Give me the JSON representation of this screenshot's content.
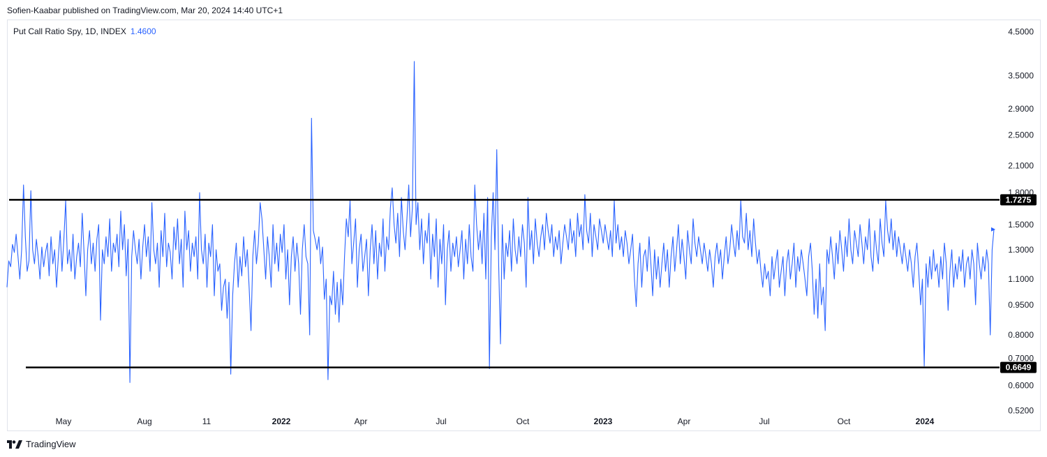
{
  "header": {
    "published": "Sofien-Kaabar published on TradingView.com, Mar 20, 2024 14:40 UTC+1"
  },
  "legend": {
    "name": "Put Call Ratio Spy, 1D, INDEX",
    "value": "1.4600"
  },
  "footer": {
    "brand": "TradingView"
  },
  "colors": {
    "series": "#2962ff",
    "hline": "#000000",
    "text": "#131722",
    "border": "#e0e3eb"
  },
  "chart_data": {
    "type": "line",
    "title": "Put Call Ratio Spy, 1D, INDEX",
    "scale": "log",
    "ylim": [
      0.5,
      4.6
    ],
    "y_ticks": [
      "4.5000",
      "3.5000",
      "2.9000",
      "2.5000",
      "2.1000",
      "1.8000",
      "1.5000",
      "1.3000",
      "1.1000",
      "0.9500",
      "0.8000",
      "0.7000",
      "0.6000",
      "0.5200"
    ],
    "x_ticks": [
      {
        "label": "May",
        "bold": false
      },
      {
        "label": "Aug",
        "bold": false
      },
      {
        "label": "11",
        "bold": false
      },
      {
        "label": "2022",
        "bold": true
      },
      {
        "label": "Apr",
        "bold": false
      },
      {
        "label": "Jul",
        "bold": false
      },
      {
        "label": "Oct",
        "bold": false
      },
      {
        "label": "2023",
        "bold": true
      },
      {
        "label": "Apr",
        "bold": false
      },
      {
        "label": "Jul",
        "bold": false
      },
      {
        "label": "Oct",
        "bold": false
      },
      {
        "label": "2024",
        "bold": true
      }
    ],
    "x_range": [
      "2021-03",
      "2024-03-20"
    ],
    "hlines": [
      {
        "value": 1.7275,
        "label": "1.7275"
      },
      {
        "value": 0.6649,
        "label": "0.6649"
      }
    ],
    "last_value": 1.46,
    "series": [
      {
        "values": [
          1.05,
          1.22,
          1.18,
          1.34,
          1.28,
          1.42,
          1.25,
          1.1,
          1.3,
          1.88,
          1.4,
          1.15,
          1.22,
          1.82,
          1.3,
          1.2,
          1.38,
          1.25,
          1.1,
          1.32,
          1.18,
          1.28,
          1.35,
          1.12,
          1.4,
          1.2,
          1.3,
          1.05,
          1.25,
          1.45,
          1.15,
          1.38,
          1.72,
          1.2,
          1.3,
          1.15,
          1.42,
          1.1,
          1.25,
          1.35,
          1.18,
          1.6,
          1.28,
          1.0,
          1.3,
          1.45,
          1.2,
          1.35,
          1.15,
          1.38,
          1.5,
          0.87,
          1.3,
          1.2,
          1.4,
          1.25,
          1.55,
          1.15,
          1.35,
          1.28,
          1.42,
          1.18,
          1.62,
          1.3,
          1.5,
          1.12,
          1.38,
          0.61,
          1.25,
          1.45,
          1.3,
          1.2,
          1.38,
          1.1,
          1.32,
          1.5,
          1.25,
          1.4,
          1.15,
          1.7,
          1.3,
          1.2,
          1.35,
          1.05,
          1.45,
          1.25,
          1.6,
          1.18,
          1.35,
          1.28,
          1.1,
          1.48,
          1.3,
          1.55,
          1.2,
          1.38,
          1.05,
          1.62,
          1.3,
          1.45,
          1.15,
          1.35,
          1.25,
          1.4,
          1.1,
          1.8,
          1.3,
          1.2,
          1.42,
          1.05,
          1.35,
          1.25,
          1.5,
          1.0,
          1.3,
          1.15,
          1.2,
          0.92,
          1.05,
          1.1,
          0.88,
          1.08,
          0.64,
          1.0,
          1.2,
          1.35,
          1.05,
          1.25,
          1.12,
          1.4,
          1.18,
          1.3,
          1.05,
          0.82,
          1.25,
          1.45,
          1.2,
          1.35,
          1.7,
          1.55,
          1.3,
          1.1,
          1.4,
          1.25,
          1.05,
          1.5,
          1.2,
          1.35,
          1.15,
          1.42,
          1.28,
          1.5,
          1.1,
          1.3,
          0.95,
          1.25,
          1.4,
          1.15,
          1.35,
          1.2,
          0.9,
          1.3,
          1.5,
          1.25,
          1.2,
          0.8,
          2.75,
          1.45,
          1.38,
          1.3,
          1.4,
          1.2,
          1.32,
          0.98,
          1.1,
          0.62,
          1.0,
          0.95,
          1.15,
          0.9,
          1.08,
          0.86,
          1.1,
          0.95,
          1.25,
          1.55,
          1.4,
          1.72,
          1.2,
          1.35,
          1.55,
          1.05,
          1.3,
          1.42,
          1.15,
          1.25,
          1.38,
          1.0,
          1.3,
          1.5,
          1.2,
          1.45,
          1.1,
          1.35,
          1.25,
          1.55,
          1.15,
          1.4,
          1.3,
          1.65,
          1.85,
          1.5,
          1.35,
          1.6,
          1.25,
          1.75,
          1.45,
          1.3,
          1.55,
          1.88,
          1.4,
          1.65,
          3.8,
          1.5,
          1.7,
          1.3,
          1.55,
          1.2,
          1.45,
          1.35,
          1.6,
          1.1,
          1.42,
          1.25,
          1.55,
          1.05,
          1.38,
          1.2,
          1.5,
          0.95,
          1.3,
          1.45,
          1.15,
          1.35,
          1.25,
          1.4,
          1.18,
          1.3,
          1.45,
          1.1,
          1.38,
          1.2,
          1.5,
          1.25,
          1.15,
          1.88,
          1.5,
          1.3,
          1.45,
          1.2,
          1.6,
          1.1,
          1.75,
          0.66,
          1.4,
          1.8,
          1.3,
          2.3,
          1.2,
          0.76,
          1.5,
          1.1,
          1.35,
          1.25,
          1.45,
          1.15,
          1.55,
          1.3,
          1.2,
          1.4,
          1.25,
          1.5,
          1.35,
          1.05,
          1.75,
          1.3,
          1.45,
          1.2,
          1.55,
          1.35,
          1.25,
          1.4,
          1.5,
          1.3,
          1.6,
          1.45,
          1.35,
          1.5,
          1.25,
          1.4,
          1.3,
          1.45,
          1.2,
          1.35,
          1.5,
          1.4,
          1.3,
          1.55,
          1.35,
          1.45,
          1.25,
          1.6,
          1.4,
          1.5,
          1.3,
          1.78,
          1.45,
          1.35,
          1.6,
          1.25,
          1.5,
          1.4,
          1.3,
          1.55,
          1.45,
          1.35,
          1.5,
          1.4,
          1.3,
          1.45,
          1.25,
          1.72,
          1.35,
          1.5,
          1.3,
          1.4,
          1.25,
          1.45,
          1.35,
          1.2,
          1.3,
          1.42,
          1.1,
          0.94,
          1.2,
          1.35,
          1.05,
          1.25,
          1.3,
          1.15,
          1.4,
          1.2,
          1.0,
          1.3,
          1.1,
          1.25,
          1.05,
          1.2,
          1.35,
          1.15,
          1.3,
          1.05,
          1.25,
          1.4,
          1.15,
          1.3,
          1.5,
          1.2,
          1.38,
          1.25,
          1.1,
          1.45,
          1.3,
          1.2,
          1.55,
          1.35,
          1.25,
          1.4,
          1.3,
          1.2,
          1.35,
          1.25,
          1.15,
          1.3,
          1.2,
          1.05,
          1.25,
          1.35,
          1.2,
          1.3,
          1.1,
          1.25,
          1.4,
          1.2,
          1.3,
          1.5,
          1.35,
          1.25,
          1.45,
          1.3,
          1.72,
          1.4,
          1.35,
          1.6,
          1.3,
          1.45,
          1.25,
          1.55,
          1.35,
          1.2,
          1.3,
          1.15,
          1.05,
          1.2,
          1.1,
          1.15,
          1.0,
          1.25,
          1.1,
          1.2,
          1.3,
          1.05,
          1.15,
          1.25,
          1.0,
          1.2,
          1.3,
          1.1,
          1.2,
          1.35,
          1.05,
          1.25,
          1.15,
          1.3,
          1.2,
          1.1,
          1.0,
          1.25,
          1.35,
          1.15,
          0.9,
          1.1,
          0.88,
          1.2,
          0.95,
          1.05,
          0.82,
          1.3,
          1.2,
          1.4,
          1.25,
          1.1,
          1.35,
          1.2,
          1.45,
          1.3,
          1.15,
          1.4,
          1.25,
          1.55,
          1.3,
          1.2,
          1.45,
          1.35,
          1.25,
          1.5,
          1.35,
          1.2,
          1.4,
          1.3,
          1.55,
          1.25,
          1.15,
          1.45,
          1.3,
          1.2,
          1.55,
          1.35,
          1.25,
          1.72,
          1.45,
          1.35,
          1.55,
          1.3,
          1.45,
          1.25,
          1.4,
          1.3,
          1.2,
          1.35,
          1.25,
          1.15,
          1.3,
          1.2,
          1.05,
          1.25,
          1.35,
          1.15,
          0.95,
          1.1,
          0.67,
          1.2,
          1.05,
          1.25,
          1.1,
          1.3,
          1.15,
          1.2,
          1.05,
          1.25,
          1.1,
          1.35,
          1.2,
          0.92,
          1.15,
          1.3,
          1.05,
          1.2,
          1.1,
          1.25,
          1.15,
          1.3,
          1.05,
          1.2,
          1.25,
          1.1,
          1.3,
          1.2,
          0.95,
          1.35,
          1.2,
          1.1,
          1.25,
          1.15,
          1.3,
          1.2,
          0.8,
          1.3,
          1.46
        ]
      }
    ]
  }
}
